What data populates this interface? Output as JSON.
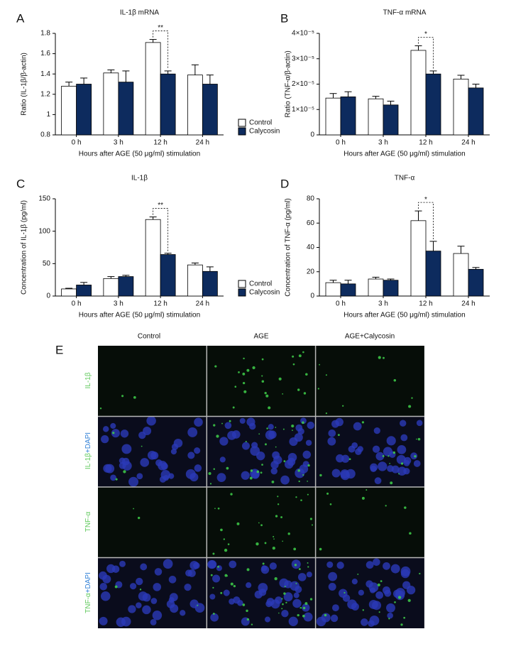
{
  "chart_data": [
    {
      "type": "bar",
      "panel": "A",
      "title": "IL-1β mRNA",
      "xlabel": "Hours after AGE (50 μg/ml) stimulation",
      "ylabel": "Ratio (IL-1β/β-actin)",
      "categories": [
        "0 h",
        "3 h",
        "12 h",
        "24 h"
      ],
      "legend": true,
      "series": [
        {
          "name": "Control",
          "color": "#ffffff",
          "values": [
            1.28,
            1.41,
            1.71,
            1.39
          ],
          "errors": [
            0.04,
            0.03,
            0.03,
            0.1
          ]
        },
        {
          "name": "Calycosin",
          "color": "#0d2b5e",
          "values": [
            1.3,
            1.32,
            1.4,
            1.3
          ],
          "errors": [
            0.06,
            0.11,
            0.03,
            0.09
          ]
        }
      ],
      "ylim": [
        0.8,
        1.8
      ],
      "yticks": [
        0.8,
        1.0,
        1.2,
        1.4,
        1.6,
        1.8
      ],
      "annotations": [
        {
          "text": "**",
          "x": "12 h"
        }
      ]
    },
    {
      "type": "bar",
      "panel": "B",
      "title": "TNF-α mRNA",
      "xlabel": "Hours after AGE (50 μg/ml) stimulation",
      "ylabel": "Ratio (TNF-α/β-actin)",
      "categories": [
        "0 h",
        "3 h",
        "12 h",
        "24 h"
      ],
      "legend": false,
      "series": [
        {
          "color": "#ffffff",
          "values": [
            1.45e-05,
            1.42e-05,
            3.33e-05,
            2.2e-05
          ],
          "errors": [
            1.8e-06,
            1e-06,
            1.8e-06,
            1.5e-06
          ]
        },
        {
          "color": "#0d2b5e",
          "values": [
            1.5e-05,
            1.18e-05,
            2.4e-05,
            1.85e-05
          ],
          "errors": [
            2e-06,
            1.5e-06,
            1.2e-06,
            1.5e-06
          ]
        }
      ],
      "ylim": [
        0,
        4e-05
      ],
      "yticks": [
        0,
        {
          "value": 1e-05,
          "label": "1×10⁻⁵"
        },
        {
          "value": 2e-05,
          "label": "2×10⁻⁵"
        },
        {
          "value": 3e-05,
          "label": "3×10⁻⁵"
        },
        {
          "value": 4e-05,
          "label": "4×10⁻⁵"
        }
      ],
      "annotations": [
        {
          "text": "*",
          "x": "12 h"
        }
      ]
    },
    {
      "type": "bar",
      "panel": "C",
      "title": "IL-1β",
      "xlabel": "Hours after AGE (50 μg/ml) stimulation",
      "ylabel": "Concentration of IL-1β (pg/ml)",
      "categories": [
        "0 h",
        "3 h",
        "12 h",
        "24 h"
      ],
      "legend": true,
      "series": [
        {
          "name": "Control",
          "color": "#ffffff",
          "values": [
            11,
            27,
            118,
            48
          ],
          "errors": [
            1,
            3,
            4,
            3
          ]
        },
        {
          "name": "Calycosin",
          "color": "#0d2b5e",
          "values": [
            17,
            30,
            64,
            38
          ],
          "errors": [
            4,
            2,
            2,
            7
          ]
        }
      ],
      "ylim": [
        0,
        150
      ],
      "yticks": [
        0,
        50,
        100,
        150
      ],
      "annotations": [
        {
          "text": "**",
          "x": "12 h"
        }
      ]
    },
    {
      "type": "bar",
      "panel": "D",
      "title": "TNF-α",
      "xlabel": "Hours after AGE (50 μg/ml) stimulation",
      "ylabel": "Concentration of TNF-α (pg/ml)",
      "categories": [
        "0 h",
        "3 h",
        "12 h",
        "24 h"
      ],
      "legend": false,
      "series": [
        {
          "color": "#ffffff",
          "values": [
            11,
            14,
            62,
            35
          ],
          "errors": [
            2,
            1.5,
            8,
            6
          ]
        },
        {
          "color": "#0d2b5e",
          "values": [
            10,
            13,
            37,
            22
          ],
          "errors": [
            3,
            1,
            8,
            1.5
          ]
        }
      ],
      "ylim": [
        0,
        80
      ],
      "yticks": [
        0,
        20,
        40,
        60,
        80
      ],
      "annotations": [
        {
          "text": "*",
          "x": "12 h"
        }
      ]
    }
  ],
  "panel_e": {
    "panel": "E",
    "columns": [
      "Control",
      "AGE",
      "AGE+Calycosin"
    ],
    "rows": [
      {
        "label": "IL-1β"
      },
      {
        "label": "IL-1β",
        "counterstain": "+DAPI"
      },
      {
        "label": "TNF-α"
      },
      {
        "label": "TNF-α",
        "counterstain": "+DAPI"
      }
    ]
  }
}
